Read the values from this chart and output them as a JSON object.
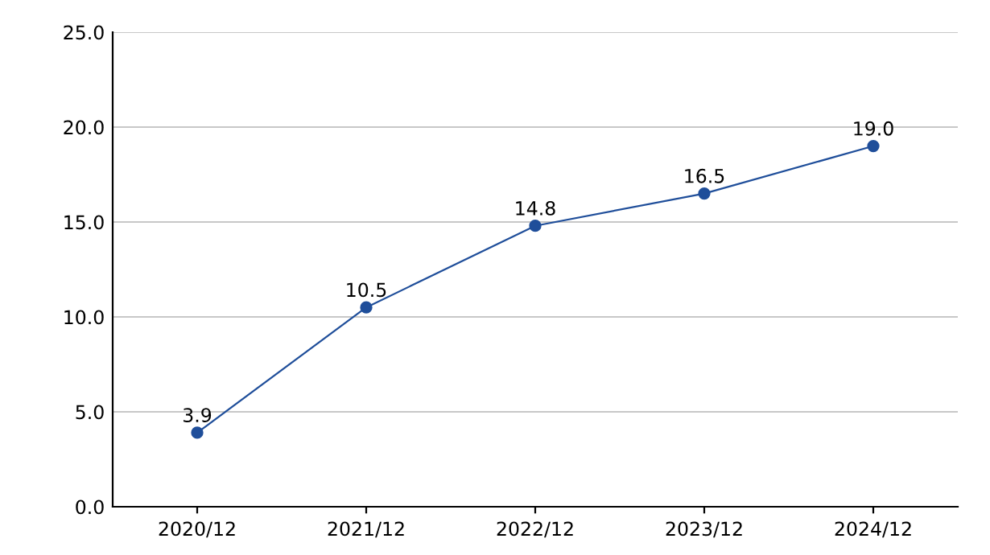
{
  "chart_data": {
    "type": "line",
    "categories": [
      "2020/12",
      "2021/12",
      "2022/12",
      "2023/12",
      "2024/12"
    ],
    "series": [
      {
        "color": "#1f4e9a",
        "values": [
          3.9,
          10.5,
          14.8,
          16.5,
          19.0
        ],
        "value_labels": [
          "3.9",
          "10.5",
          "14.8",
          "16.5",
          "19.0"
        ]
      }
    ],
    "ylim": [
      0,
      25
    ],
    "yticks": [
      {
        "value": 0,
        "label": "0.0"
      },
      {
        "value": 5,
        "label": "5.0"
      },
      {
        "value": 10,
        "label": "10.0"
      },
      {
        "value": 15,
        "label": "15.0"
      },
      {
        "value": 20,
        "label": "20.0"
      },
      {
        "value": 25,
        "label": "25.0"
      }
    ],
    "grid": "y",
    "marker": "circle",
    "line_style": "solid"
  }
}
